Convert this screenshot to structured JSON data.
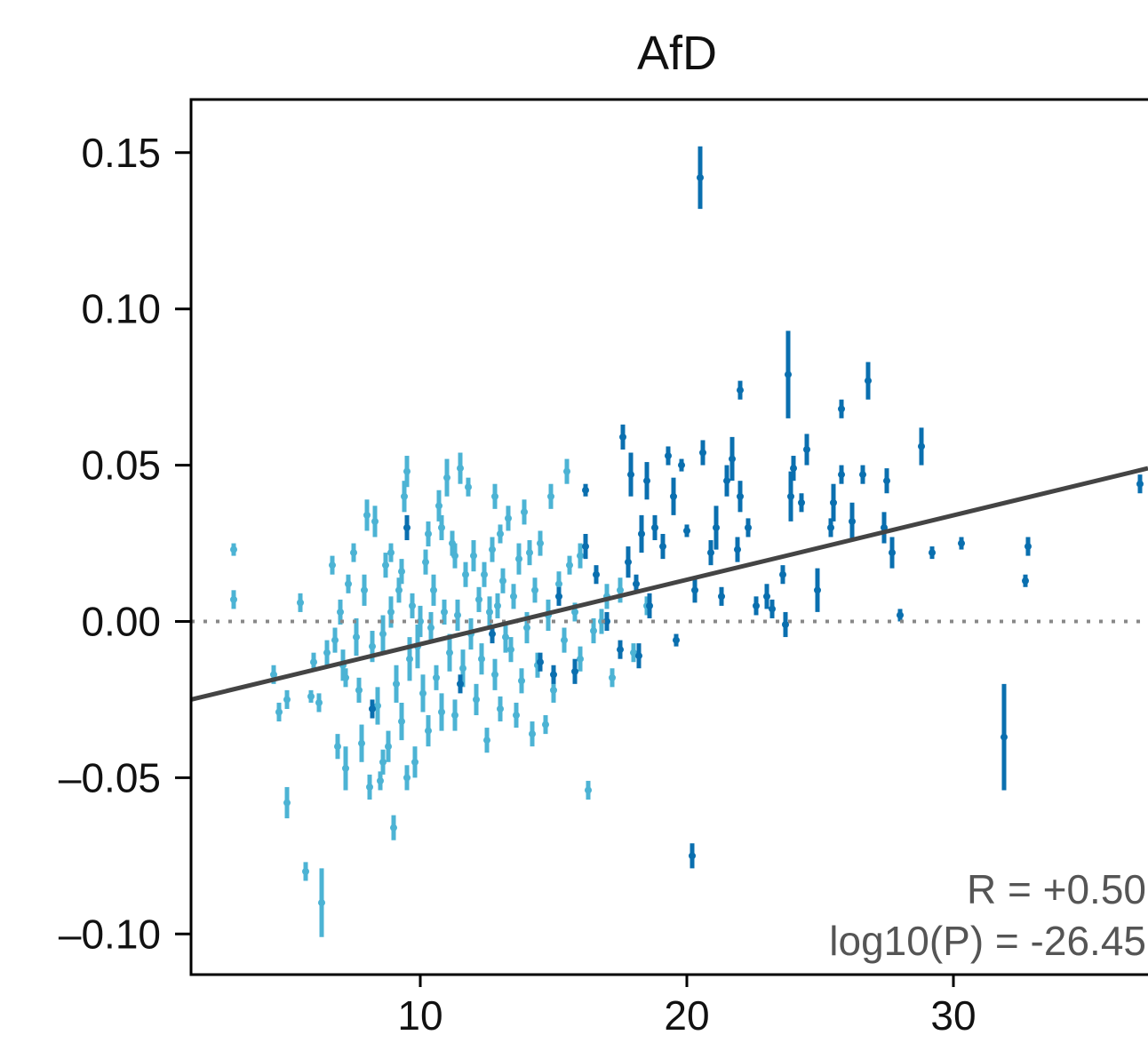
{
  "chart_data": {
    "type": "scatter",
    "title": "AfD",
    "xlabel": "",
    "ylabel": "",
    "xlim": [
      1.4,
      37.3
    ],
    "ylim": [
      -0.113,
      0.167
    ],
    "xticks": [
      10,
      20,
      30
    ],
    "yticks": [
      0.15,
      0.1,
      0.05,
      0.0,
      -0.05,
      -0.1
    ],
    "xtick_labels": [
      "10",
      "20",
      "30"
    ],
    "ytick_labels": [
      "0.15",
      "0.10",
      "0.05",
      "0.00",
      "–0.05",
      "–0.10"
    ],
    "reference_line_y": 0.0,
    "grid": false,
    "fit_line": {
      "x": [
        1.4,
        37.3
      ],
      "y": [
        -0.025,
        0.049
      ],
      "color": "#444444"
    },
    "annotations": [
      "R = +0.50",
      "log10(P) = -26.45"
    ],
    "colors": {
      "light": "#4cb3d4",
      "dark": "#0a6faf",
      "zero_line": "#888888"
    },
    "series": [
      {
        "color": "light",
        "points": [
          [
            3.0,
            0.023,
            0.002
          ],
          [
            3.0,
            0.007,
            0.003
          ],
          [
            4.5,
            -0.017,
            0.003
          ],
          [
            4.7,
            -0.029,
            0.003
          ],
          [
            5.0,
            -0.025,
            0.003
          ],
          [
            5.0,
            -0.058,
            0.005
          ],
          [
            5.5,
            0.006,
            0.003
          ],
          [
            5.7,
            -0.08,
            0.003
          ],
          [
            5.9,
            -0.024,
            0.002
          ],
          [
            6.0,
            -0.013,
            0.003
          ],
          [
            6.2,
            -0.026,
            0.003
          ],
          [
            6.3,
            -0.09,
            0.011
          ],
          [
            6.5,
            -0.01,
            0.004
          ],
          [
            6.7,
            0.018,
            0.003
          ],
          [
            6.8,
            -0.006,
            0.004
          ],
          [
            7.0,
            0.003,
            0.004
          ],
          [
            7.1,
            -0.014,
            0.005
          ],
          [
            7.2,
            -0.047,
            0.007
          ],
          [
            7.3,
            0.012,
            0.003
          ],
          [
            7.5,
            0.022,
            0.003
          ],
          [
            7.6,
            -0.005,
            0.006
          ],
          [
            7.7,
            -0.022,
            0.004
          ],
          [
            7.8,
            -0.039,
            0.006
          ],
          [
            7.9,
            0.01,
            0.005
          ],
          [
            8.0,
            0.034,
            0.005
          ],
          [
            8.1,
            -0.053,
            0.004
          ],
          [
            8.2,
            -0.008,
            0.005
          ],
          [
            8.3,
            0.032,
            0.005
          ],
          [
            8.4,
            -0.027,
            0.006
          ],
          [
            8.5,
            -0.051,
            0.003
          ],
          [
            8.6,
            -0.004,
            0.006
          ],
          [
            8.7,
            0.018,
            0.004
          ],
          [
            8.8,
            -0.04,
            0.005
          ],
          [
            8.9,
            0.003,
            0.005
          ],
          [
            9.0,
            -0.066,
            0.004
          ],
          [
            9.1,
            -0.02,
            0.006
          ],
          [
            9.2,
            0.01,
            0.004
          ],
          [
            9.3,
            -0.032,
            0.006
          ],
          [
            9.4,
            0.04,
            0.005
          ],
          [
            9.5,
            0.048,
            0.005
          ],
          [
            9.6,
            -0.012,
            0.007
          ],
          [
            9.7,
            0.005,
            0.004
          ],
          [
            9.8,
            -0.045,
            0.005
          ],
          [
            9.9,
            -0.008,
            0.007
          ],
          [
            10.0,
            0.0,
            0.005
          ],
          [
            10.1,
            -0.023,
            0.006
          ],
          [
            10.2,
            0.019,
            0.004
          ],
          [
            10.3,
            -0.035,
            0.005
          ],
          [
            10.4,
            -0.002,
            0.005
          ],
          [
            10.5,
            0.01,
            0.005
          ],
          [
            10.6,
            -0.018,
            0.004
          ],
          [
            10.7,
            0.037,
            0.005
          ],
          [
            10.8,
            -0.029,
            0.006
          ],
          [
            10.9,
            0.003,
            0.004
          ],
          [
            11.0,
            0.046,
            0.006
          ],
          [
            11.1,
            -0.01,
            0.006
          ],
          [
            11.2,
            0.025,
            0.004
          ],
          [
            11.3,
            -0.03,
            0.005
          ],
          [
            11.4,
            0.002,
            0.005
          ],
          [
            11.5,
            0.049,
            0.005
          ],
          [
            11.6,
            -0.015,
            0.006
          ],
          [
            11.7,
            0.015,
            0.004
          ],
          [
            11.8,
            0.043,
            0.003
          ],
          [
            11.9,
            -0.004,
            0.005
          ],
          [
            12.0,
            0.021,
            0.005
          ],
          [
            12.1,
            -0.025,
            0.005
          ],
          [
            12.2,
            0.007,
            0.004
          ],
          [
            12.3,
            -0.012,
            0.005
          ],
          [
            12.4,
            0.015,
            0.004
          ],
          [
            12.5,
            -0.038,
            0.004
          ],
          [
            12.6,
            0.003,
            0.005
          ],
          [
            12.7,
            0.023,
            0.004
          ],
          [
            12.8,
            -0.017,
            0.005
          ],
          [
            12.9,
            0.005,
            0.004
          ],
          [
            13.0,
            -0.028,
            0.004
          ],
          [
            13.1,
            0.013,
            0.004
          ],
          [
            13.2,
            -0.005,
            0.005
          ],
          [
            13.3,
            0.033,
            0.004
          ],
          [
            13.4,
            -0.009,
            0.004
          ],
          [
            13.5,
            0.008,
            0.004
          ],
          [
            13.6,
            -0.03,
            0.004
          ],
          [
            13.7,
            0.02,
            0.005
          ],
          [
            13.8,
            -0.019,
            0.004
          ],
          [
            13.9,
            0.035,
            0.004
          ],
          [
            14.0,
            -0.002,
            0.005
          ],
          [
            14.1,
            0.022,
            0.004
          ],
          [
            14.2,
            -0.036,
            0.004
          ],
          [
            14.3,
            0.01,
            0.004
          ],
          [
            14.4,
            -0.014,
            0.004
          ],
          [
            14.5,
            0.025,
            0.004
          ],
          [
            14.7,
            -0.033,
            0.003
          ],
          [
            14.8,
            0.002,
            0.005
          ],
          [
            15.0,
            -0.022,
            0.004
          ],
          [
            15.2,
            0.012,
            0.004
          ],
          [
            15.4,
            -0.006,
            0.004
          ],
          [
            15.6,
            0.018,
            0.003
          ],
          [
            15.8,
            0.003,
            0.003
          ],
          [
            16.0,
            -0.012,
            0.004
          ],
          [
            16.3,
            -0.054,
            0.003
          ],
          [
            16.5,
            -0.003,
            0.004
          ],
          [
            16.8,
            0.0,
            0.004
          ],
          [
            17.0,
            0.008,
            0.004
          ],
          [
            17.2,
            -0.018,
            0.003
          ],
          [
            17.5,
            0.01,
            0.004
          ],
          [
            18.0,
            -0.01,
            0.003
          ],
          [
            18.5,
            0.005,
            0.003
          ],
          [
            16.0,
            0.021,
            0.004
          ],
          [
            15.5,
            0.048,
            0.004
          ],
          [
            14.9,
            0.04,
            0.004
          ],
          [
            13.0,
            0.028,
            0.003
          ],
          [
            12.8,
            0.04,
            0.004
          ],
          [
            10.8,
            0.03,
            0.004
          ],
          [
            9.5,
            -0.05,
            0.004
          ],
          [
            8.6,
            -0.045,
            0.004
          ],
          [
            7.2,
            -0.018,
            0.003
          ],
          [
            6.9,
            -0.04,
            0.004
          ],
          [
            11.3,
            0.021,
            0.004
          ],
          [
            10.3,
            0.028,
            0.004
          ],
          [
            8.9,
            0.022,
            0.003
          ],
          [
            9.3,
            0.016,
            0.004
          ]
        ]
      },
      {
        "color": "dark",
        "points": [
          [
            9.5,
            0.03,
            0.004
          ],
          [
            8.2,
            -0.028,
            0.003
          ],
          [
            11.5,
            -0.02,
            0.003
          ],
          [
            12.7,
            -0.004,
            0.003
          ],
          [
            14.5,
            -0.013,
            0.003
          ],
          [
            15.0,
            -0.017,
            0.003
          ],
          [
            15.2,
            0.008,
            0.003
          ],
          [
            15.8,
            -0.016,
            0.004
          ],
          [
            16.2,
            0.024,
            0.004
          ],
          [
            16.2,
            0.042,
            0.002
          ],
          [
            16.6,
            0.015,
            0.003
          ],
          [
            17.0,
            0.0,
            0.003
          ],
          [
            17.5,
            -0.009,
            0.003
          ],
          [
            17.6,
            0.059,
            0.004
          ],
          [
            17.8,
            0.019,
            0.005
          ],
          [
            17.9,
            0.047,
            0.007
          ],
          [
            18.1,
            0.012,
            0.003
          ],
          [
            18.2,
            -0.011,
            0.004
          ],
          [
            18.3,
            0.028,
            0.006
          ],
          [
            18.5,
            0.045,
            0.006
          ],
          [
            18.6,
            0.005,
            0.004
          ],
          [
            18.8,
            0.03,
            0.004
          ],
          [
            19.1,
            0.024,
            0.004
          ],
          [
            19.3,
            0.053,
            0.003
          ],
          [
            19.5,
            0.04,
            0.006
          ],
          [
            19.6,
            -0.006,
            0.002
          ],
          [
            19.8,
            0.05,
            0.002
          ],
          [
            20.0,
            0.029,
            0.002
          ],
          [
            20.2,
            -0.075,
            0.004
          ],
          [
            20.3,
            0.01,
            0.004
          ],
          [
            20.5,
            0.142,
            0.01
          ],
          [
            20.6,
            0.054,
            0.004
          ],
          [
            20.9,
            0.022,
            0.004
          ],
          [
            21.1,
            0.03,
            0.007
          ],
          [
            21.3,
            0.008,
            0.003
          ],
          [
            21.5,
            0.045,
            0.005
          ],
          [
            21.7,
            0.052,
            0.007
          ],
          [
            21.9,
            0.023,
            0.004
          ],
          [
            22.0,
            0.04,
            0.005
          ],
          [
            22.0,
            0.074,
            0.003
          ],
          [
            22.3,
            0.03,
            0.003
          ],
          [
            22.6,
            0.005,
            0.003
          ],
          [
            23.0,
            0.008,
            0.004
          ],
          [
            23.2,
            0.004,
            0.003
          ],
          [
            23.6,
            0.015,
            0.003
          ],
          [
            23.7,
            -0.001,
            0.004
          ],
          [
            23.8,
            0.079,
            0.014
          ],
          [
            23.9,
            0.04,
            0.008
          ],
          [
            24.0,
            0.049,
            0.004
          ],
          [
            24.3,
            0.038,
            0.003
          ],
          [
            24.5,
            0.055,
            0.005
          ],
          [
            24.9,
            0.01,
            0.007
          ],
          [
            25.4,
            0.03,
            0.003
          ],
          [
            25.5,
            0.038,
            0.006
          ],
          [
            25.8,
            0.047,
            0.003
          ],
          [
            25.8,
            0.068,
            0.003
          ],
          [
            26.2,
            0.032,
            0.006
          ],
          [
            26.6,
            0.047,
            0.003
          ],
          [
            26.8,
            0.077,
            0.006
          ],
          [
            27.4,
            0.03,
            0.005
          ],
          [
            27.5,
            0.045,
            0.004
          ],
          [
            27.7,
            0.022,
            0.005
          ],
          [
            28.0,
            0.002,
            0.002
          ],
          [
            28.8,
            0.056,
            0.006
          ],
          [
            29.2,
            0.022,
            0.002
          ],
          [
            30.3,
            0.025,
            0.002
          ],
          [
            31.9,
            -0.037,
            0.017
          ],
          [
            32.7,
            0.013,
            0.002
          ],
          [
            32.8,
            0.024,
            0.003
          ],
          [
            37.0,
            0.044,
            0.003
          ]
        ]
      }
    ]
  }
}
